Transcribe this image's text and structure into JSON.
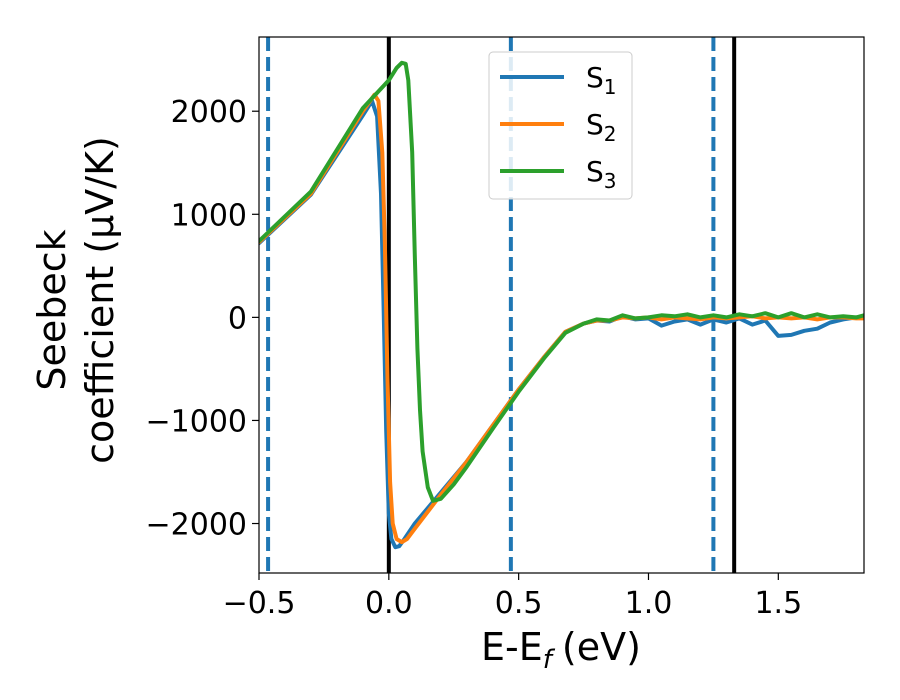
{
  "chart_data": {
    "type": "line",
    "title": "",
    "xlabel": "E-E",
    "xlabel_sub": "f",
    "xlabel_unit": "(eV)",
    "ylabel_line1": "Seebeck",
    "ylabel_line2": "coefficient  (μV/K)",
    "xlim": [
      -0.5,
      1.83
    ],
    "ylim": [
      -2480,
      2720
    ],
    "xticks": [
      -0.5,
      0.0,
      0.5,
      1.0,
      1.5
    ],
    "xtick_labels": [
      "−0.5",
      "0.0",
      "0.5",
      "1.0",
      "1.5"
    ],
    "yticks": [
      -2000,
      -1000,
      0,
      1000,
      2000
    ],
    "ytick_labels": [
      "−2000",
      "−1000",
      "0",
      "1000",
      "2000"
    ],
    "grid": false,
    "legend_position": "top-center",
    "vlines": [
      {
        "x": -0.465,
        "style": "dashed",
        "color": "#1f77b4"
      },
      {
        "x": 0.0,
        "style": "solid",
        "color": "#000000"
      },
      {
        "x": 0.47,
        "style": "dashed",
        "color": "#1f77b4"
      },
      {
        "x": 1.25,
        "style": "dashed",
        "color": "#1f77b4"
      },
      {
        "x": 1.33,
        "style": "solid",
        "color": "#000000"
      }
    ],
    "series": [
      {
        "name": "S",
        "sub": "1",
        "color": "#1f77b4",
        "x": [
          -0.5,
          -0.3,
          -0.1,
          -0.065,
          -0.045,
          -0.03,
          -0.02,
          -0.01,
          0.0,
          0.01,
          0.025,
          0.04,
          0.06,
          0.1,
          0.2,
          0.3,
          0.4,
          0.5,
          0.6,
          0.68,
          0.75,
          0.8,
          0.85,
          0.9,
          0.95,
          1.0,
          1.05,
          1.1,
          1.15,
          1.2,
          1.25,
          1.3,
          1.35,
          1.4,
          1.45,
          1.5,
          1.55,
          1.6,
          1.65,
          1.7,
          1.75,
          1.8,
          1.83
        ],
        "values": [
          720,
          1190,
          1960,
          2100,
          1950,
          1200,
          100,
          -1100,
          -1900,
          -2150,
          -2230,
          -2220,
          -2150,
          -2000,
          -1700,
          -1400,
          -1050,
          -700,
          -380,
          -140,
          -60,
          -30,
          -40,
          10,
          -20,
          -10,
          -80,
          -40,
          -20,
          -70,
          -20,
          -50,
          -10,
          -70,
          -30,
          -180,
          -170,
          -130,
          -110,
          -50,
          -20,
          0,
          0
        ]
      },
      {
        "name": "S",
        "sub": "2",
        "color": "#ff7f0e",
        "x": [
          -0.5,
          -0.3,
          -0.1,
          -0.055,
          -0.04,
          -0.025,
          -0.015,
          -0.005,
          0.005,
          0.015,
          0.03,
          0.05,
          0.07,
          0.1,
          0.2,
          0.3,
          0.4,
          0.5,
          0.6,
          0.68,
          0.75,
          0.8,
          0.85,
          0.9,
          0.95,
          1.0,
          1.05,
          1.1,
          1.15,
          1.2,
          1.25,
          1.3,
          1.35,
          1.4,
          1.45,
          1.5,
          1.55,
          1.6,
          1.65,
          1.7,
          1.75,
          1.8,
          1.83
        ],
        "values": [
          730,
          1200,
          2000,
          2160,
          2100,
          1600,
          700,
          -600,
          -1600,
          -2000,
          -2150,
          -2180,
          -2150,
          -2050,
          -1720,
          -1400,
          -1050,
          -700,
          -380,
          -140,
          -60,
          -30,
          -30,
          0,
          -10,
          0,
          -20,
          0,
          -10,
          -20,
          0,
          -10,
          0,
          10,
          -10,
          0,
          -10,
          0,
          -20,
          0,
          0,
          -10,
          -10
        ]
      },
      {
        "name": "S",
        "sub": "3",
        "color": "#2ca02c",
        "x": [
          -0.5,
          -0.3,
          -0.1,
          0.0,
          0.03,
          0.05,
          0.065,
          0.075,
          0.09,
          0.1,
          0.11,
          0.12,
          0.13,
          0.15,
          0.17,
          0.2,
          0.25,
          0.3,
          0.4,
          0.5,
          0.6,
          0.68,
          0.75,
          0.8,
          0.85,
          0.9,
          0.95,
          1.0,
          1.05,
          1.1,
          1.15,
          1.2,
          1.25,
          1.3,
          1.35,
          1.4,
          1.45,
          1.5,
          1.55,
          1.6,
          1.65,
          1.7,
          1.75,
          1.8,
          1.83
        ],
        "values": [
          740,
          1220,
          2030,
          2300,
          2420,
          2470,
          2460,
          2300,
          1600,
          600,
          -300,
          -900,
          -1300,
          -1650,
          -1780,
          -1760,
          -1620,
          -1450,
          -1080,
          -720,
          -390,
          -150,
          -60,
          -20,
          -30,
          20,
          -10,
          0,
          20,
          10,
          30,
          0,
          20,
          0,
          30,
          10,
          40,
          0,
          40,
          0,
          30,
          0,
          10,
          0,
          20
        ]
      }
    ]
  }
}
